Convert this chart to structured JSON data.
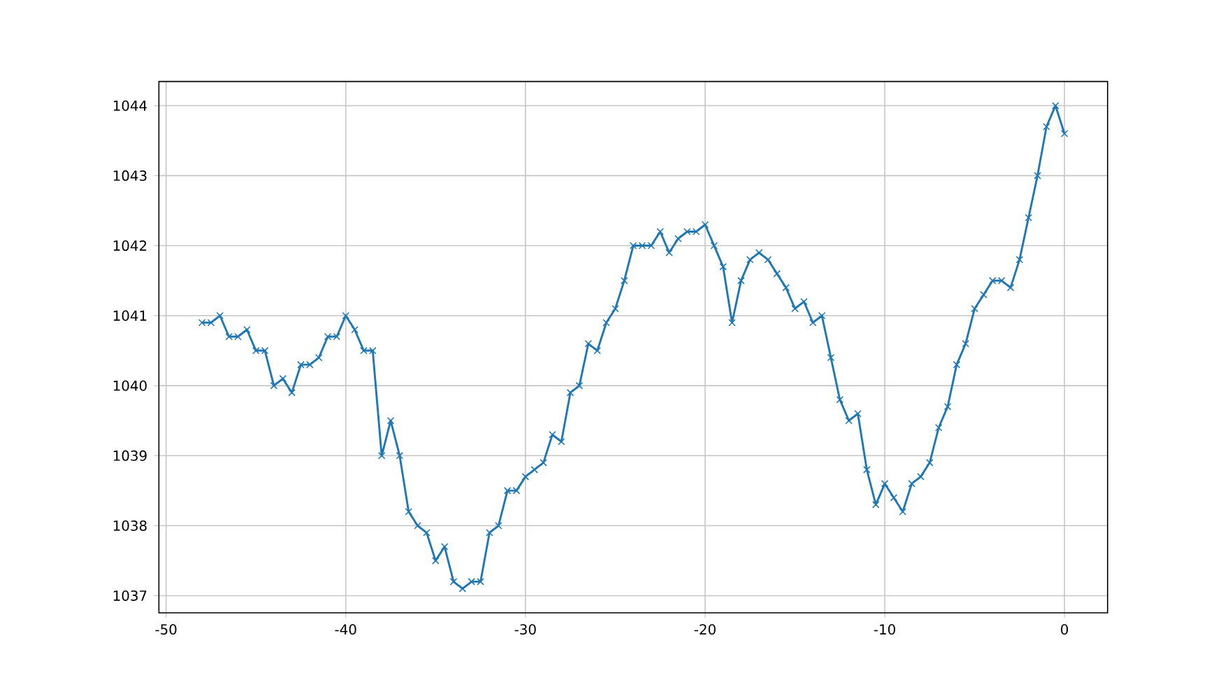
{
  "chart_data": {
    "type": "line",
    "x": [
      -48,
      -47.5,
      -47,
      -46.5,
      -46,
      -45.5,
      -45,
      -44.5,
      -44,
      -43.5,
      -43,
      -42.5,
      -42,
      -41.5,
      -41,
      -40.5,
      -40,
      -39.5,
      -39,
      -38.5,
      -38,
      -37.5,
      -37,
      -36.5,
      -36,
      -35.5,
      -35,
      -34.5,
      -34,
      -33.5,
      -33,
      -32.5,
      -32,
      -31.5,
      -31,
      -30.5,
      -30,
      -29.5,
      -29,
      -28.5,
      -28,
      -27.5,
      -27,
      -26.5,
      -26,
      -25.5,
      -25,
      -24.5,
      -24,
      -23.5,
      -23,
      -22.5,
      -22,
      -21.5,
      -21,
      -20.5,
      -20,
      -19.5,
      -19,
      -18.5,
      -18,
      -17.5,
      -17,
      -16.5,
      -16,
      -15.5,
      -15,
      -14.5,
      -14,
      -13.5,
      -13,
      -12.5,
      -12,
      -11.5,
      -11,
      -10.5,
      -10,
      -9.5,
      -9,
      -8.5,
      -8,
      -7.5,
      -7,
      -6.5,
      -6,
      -5.5,
      -5,
      -4.5,
      -4,
      -3.5,
      -3,
      -2.5,
      -2,
      -1.5,
      -1,
      -0.5,
      0
    ],
    "series": [
      {
        "color": "#1f77b4",
        "values": [
          1040.9,
          1040.9,
          1041.0,
          1040.7,
          1040.7,
          1040.8,
          1040.5,
          1040.5,
          1040.0,
          1040.1,
          1039.9,
          1040.3,
          1040.3,
          1040.4,
          1040.7,
          1040.7,
          1041.0,
          1040.8,
          1040.5,
          1040.5,
          1039.0,
          1039.5,
          1039.0,
          1038.2,
          1038.0,
          1037.9,
          1037.5,
          1037.7,
          1037.2,
          1037.1,
          1037.2,
          1037.2,
          1037.9,
          1038.0,
          1038.5,
          1038.5,
          1038.7,
          1038.8,
          1038.9,
          1039.3,
          1039.2,
          1039.9,
          1040.0,
          1040.6,
          1040.5,
          1040.9,
          1041.1,
          1041.5,
          1042.0,
          1042.0,
          1042.0,
          1042.2,
          1041.9,
          1042.1,
          1042.2,
          1042.2,
          1042.3,
          1042.0,
          1041.7,
          1040.9,
          1041.5,
          1041.8,
          1041.9,
          1041.8,
          1041.6,
          1041.4,
          1041.1,
          1041.2,
          1040.9,
          1041.0,
          1040.4,
          1039.8,
          1039.5,
          1039.6,
          1038.8,
          1038.3,
          1038.6,
          1038.4,
          1038.2,
          1038.6,
          1038.7,
          1038.9,
          1039.4,
          1039.7,
          1040.3,
          1040.6,
          1041.1,
          1041.3,
          1041.5,
          1041.5,
          1041.4,
          1041.8,
          1042.4,
          1043.0,
          1043.7,
          1044.0,
          1043.6
        ]
      }
    ],
    "xlim": [
      -50.4,
      2.4
    ],
    "ylim": [
      1036.755,
      1044.345
    ],
    "xticks": [
      -50,
      -40,
      -30,
      -20,
      -10,
      0
    ],
    "yticks": [
      1037,
      1038,
      1039,
      1040,
      1041,
      1042,
      1043,
      1044
    ],
    "grid": true,
    "marker": "cross",
    "line_style": "solid"
  }
}
